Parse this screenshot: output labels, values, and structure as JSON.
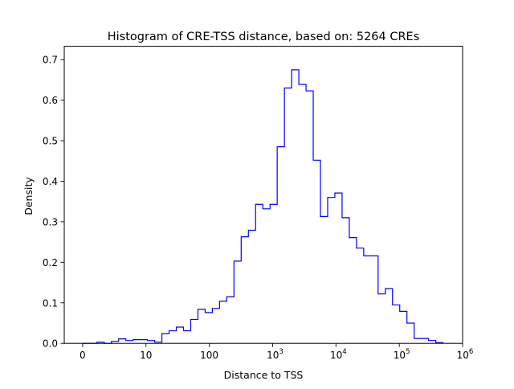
{
  "chart_data": {
    "type": "histogram",
    "title": "Histogram of CRE-TSS distance, based on: 5264 CREs",
    "xlabel": "Distance to TSS",
    "ylabel": "Density",
    "x_scale": "symlog",
    "linthresh": 10,
    "xlim": [
      -2,
      1000000
    ],
    "ylim": [
      0,
      0.733
    ],
    "bins": {
      "count": 50,
      "range": [
        0,
        490000
      ],
      "spacing": "symlog"
    },
    "histtype": "step",
    "color": "#0000ff",
    "values": [
      0,
      0,
      0.003,
      0,
      0.005,
      0.011,
      0.007,
      0.009,
      0.009,
      0.007,
      0.003,
      0.024,
      0.031,
      0.04,
      0.031,
      0.059,
      0.084,
      0.076,
      0.086,
      0.104,
      0.115,
      0.203,
      0.263,
      0.279,
      0.343,
      0.332,
      0.343,
      0.485,
      0.63,
      0.675,
      0.639,
      0.623,
      0.452,
      0.313,
      0.36,
      0.371,
      0.31,
      0.261,
      0.235,
      0.216,
      0.216,
      0.122,
      0.135,
      0.095,
      0.079,
      0.05,
      0.012,
      0.012,
      0.007,
      0.002
    ],
    "x_ticks": [
      {
        "value": 0,
        "base": "0",
        "exp": ""
      },
      {
        "value": 10,
        "base": "10",
        "exp": ""
      },
      {
        "value": 100,
        "base": "100",
        "exp": ""
      },
      {
        "value": 1000,
        "base": "10",
        "exp": "3"
      },
      {
        "value": 10000,
        "base": "10",
        "exp": "4"
      },
      {
        "value": 100000,
        "base": "10",
        "exp": "5"
      },
      {
        "value": 1000000,
        "base": "10",
        "exp": "6"
      }
    ],
    "y_ticks": [
      {
        "value": 0,
        "label": "0.0"
      },
      {
        "value": 0.1,
        "label": "0.1"
      },
      {
        "value": 0.2,
        "label": "0.2"
      },
      {
        "value": 0.3,
        "label": "0.3"
      },
      {
        "value": 0.4,
        "label": "0.4"
      },
      {
        "value": 0.5,
        "label": "0.5"
      },
      {
        "value": 0.6,
        "label": "0.6"
      },
      {
        "value": 0.7,
        "label": "0.7"
      }
    ]
  }
}
